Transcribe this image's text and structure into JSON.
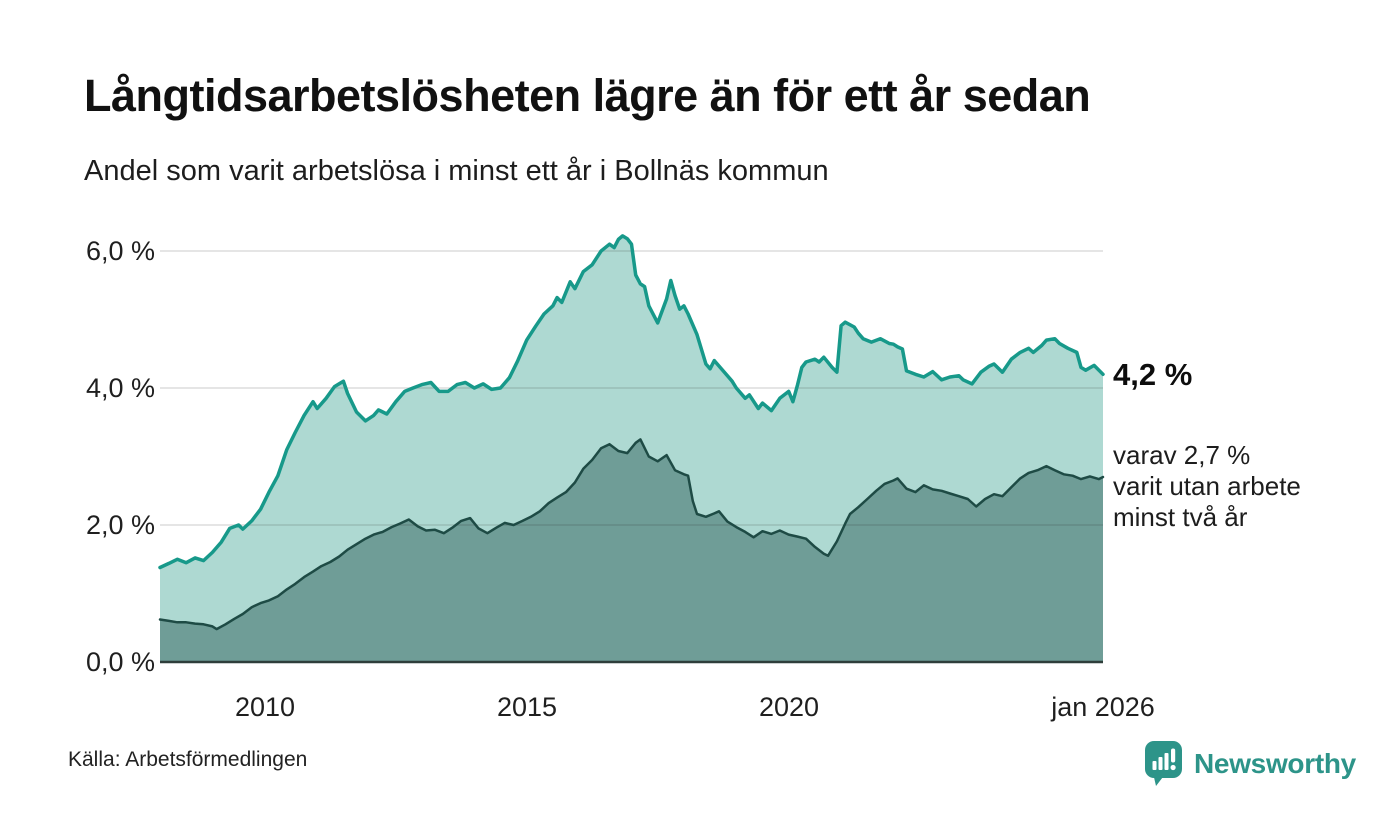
{
  "header": {
    "title": "Långtidsarbetslösheten lägre än för ett år sedan",
    "subtitle": "Andel som varit arbetslösa i minst ett år i Bollnäs kommun"
  },
  "chart_data": {
    "type": "area",
    "title": "Långtidsarbetslösheten lägre än för ett år sedan",
    "subtitle": "Andel som varit arbetslösa i minst ett år i Bollnäs kommun",
    "unit": "%",
    "grid": "horizontal",
    "x_axis": {
      "min": 2008,
      "max": 2026,
      "ticks": [
        {
          "value": 2010,
          "label": "2010"
        },
        {
          "value": 2015,
          "label": "2015"
        },
        {
          "value": 2020,
          "label": "2020"
        },
        {
          "value": 2026,
          "label": "jan 2026"
        }
      ]
    },
    "y_axis": {
      "min": 0,
      "max": 6.5,
      "ticks": [
        {
          "value": 6,
          "label": "6,0 %"
        },
        {
          "value": 4,
          "label": "4,0 %"
        },
        {
          "value": 2,
          "label": "2,0 %"
        },
        {
          "value": 0,
          "label": "0,0 %"
        }
      ]
    },
    "series": [
      {
        "name": "Andel arbetslösa minst ett år",
        "fill": "#aed9d2",
        "stroke": "#17998a",
        "stroke_width": 3.5,
        "latest_value": 4.2,
        "points": [
          [
            2008.0,
            1.38
          ],
          [
            2008.17,
            1.44
          ],
          [
            2008.33,
            1.5
          ],
          [
            2008.5,
            1.45
          ],
          [
            2008.67,
            1.52
          ],
          [
            2008.83,
            1.48
          ],
          [
            2009.0,
            1.6
          ],
          [
            2009.17,
            1.75
          ],
          [
            2009.33,
            1.95
          ],
          [
            2009.5,
            2.0
          ],
          [
            2009.58,
            1.94
          ],
          [
            2009.75,
            2.06
          ],
          [
            2009.92,
            2.23
          ],
          [
            2010.08,
            2.48
          ],
          [
            2010.25,
            2.72
          ],
          [
            2010.42,
            3.1
          ],
          [
            2010.58,
            3.35
          ],
          [
            2010.75,
            3.6
          ],
          [
            2010.92,
            3.8
          ],
          [
            2011.0,
            3.7
          ],
          [
            2011.17,
            3.85
          ],
          [
            2011.33,
            4.02
          ],
          [
            2011.5,
            4.1
          ],
          [
            2011.58,
            3.92
          ],
          [
            2011.75,
            3.65
          ],
          [
            2011.92,
            3.52
          ],
          [
            2012.08,
            3.6
          ],
          [
            2012.17,
            3.68
          ],
          [
            2012.33,
            3.62
          ],
          [
            2012.5,
            3.8
          ],
          [
            2012.67,
            3.95
          ],
          [
            2012.83,
            4.0
          ],
          [
            2013.0,
            4.05
          ],
          [
            2013.17,
            4.08
          ],
          [
            2013.33,
            3.95
          ],
          [
            2013.5,
            3.95
          ],
          [
            2013.67,
            4.05
          ],
          [
            2013.83,
            4.08
          ],
          [
            2014.0,
            4.0
          ],
          [
            2014.17,
            4.06
          ],
          [
            2014.33,
            3.98
          ],
          [
            2014.5,
            4.0
          ],
          [
            2014.67,
            4.15
          ],
          [
            2014.83,
            4.4
          ],
          [
            2015.0,
            4.7
          ],
          [
            2015.17,
            4.9
          ],
          [
            2015.33,
            5.08
          ],
          [
            2015.5,
            5.2
          ],
          [
            2015.58,
            5.32
          ],
          [
            2015.67,
            5.25
          ],
          [
            2015.83,
            5.55
          ],
          [
            2015.92,
            5.45
          ],
          [
            2016.08,
            5.7
          ],
          [
            2016.25,
            5.8
          ],
          [
            2016.42,
            6.0
          ],
          [
            2016.58,
            6.1
          ],
          [
            2016.67,
            6.05
          ],
          [
            2016.75,
            6.17
          ],
          [
            2016.83,
            6.22
          ],
          [
            2016.92,
            6.18
          ],
          [
            2017.0,
            6.1
          ],
          [
            2017.08,
            5.65
          ],
          [
            2017.17,
            5.52
          ],
          [
            2017.25,
            5.48
          ],
          [
            2017.33,
            5.2
          ],
          [
            2017.5,
            4.95
          ],
          [
            2017.67,
            5.3
          ],
          [
            2017.75,
            5.57
          ],
          [
            2017.83,
            5.35
          ],
          [
            2017.92,
            5.15
          ],
          [
            2018.0,
            5.2
          ],
          [
            2018.08,
            5.08
          ],
          [
            2018.25,
            4.78
          ],
          [
            2018.42,
            4.35
          ],
          [
            2018.5,
            4.28
          ],
          [
            2018.58,
            4.4
          ],
          [
            2018.75,
            4.25
          ],
          [
            2018.92,
            4.1
          ],
          [
            2019.0,
            4.0
          ],
          [
            2019.17,
            3.85
          ],
          [
            2019.25,
            3.9
          ],
          [
            2019.42,
            3.7
          ],
          [
            2019.5,
            3.78
          ],
          [
            2019.67,
            3.67
          ],
          [
            2019.83,
            3.85
          ],
          [
            2020.0,
            3.95
          ],
          [
            2020.08,
            3.8
          ],
          [
            2020.17,
            4.05
          ],
          [
            2020.25,
            4.3
          ],
          [
            2020.33,
            4.38
          ],
          [
            2020.5,
            4.42
          ],
          [
            2020.58,
            4.38
          ],
          [
            2020.67,
            4.45
          ],
          [
            2020.83,
            4.3
          ],
          [
            2020.92,
            4.23
          ],
          [
            2021.0,
            4.91
          ],
          [
            2021.08,
            4.96
          ],
          [
            2021.25,
            4.89
          ],
          [
            2021.33,
            4.8
          ],
          [
            2021.42,
            4.72
          ],
          [
            2021.58,
            4.67
          ],
          [
            2021.75,
            4.72
          ],
          [
            2021.92,
            4.65
          ],
          [
            2022.0,
            4.64
          ],
          [
            2022.08,
            4.6
          ],
          [
            2022.17,
            4.57
          ],
          [
            2022.25,
            4.25
          ],
          [
            2022.42,
            4.2
          ],
          [
            2022.58,
            4.16
          ],
          [
            2022.75,
            4.24
          ],
          [
            2022.92,
            4.12
          ],
          [
            2023.08,
            4.16
          ],
          [
            2023.25,
            4.18
          ],
          [
            2023.33,
            4.12
          ],
          [
            2023.5,
            4.06
          ],
          [
            2023.67,
            4.23
          ],
          [
            2023.83,
            4.32
          ],
          [
            2023.92,
            4.35
          ],
          [
            2024.08,
            4.23
          ],
          [
            2024.25,
            4.42
          ],
          [
            2024.42,
            4.52
          ],
          [
            2024.58,
            4.58
          ],
          [
            2024.67,
            4.52
          ],
          [
            2024.83,
            4.62
          ],
          [
            2024.92,
            4.7
          ],
          [
            2025.08,
            4.72
          ],
          [
            2025.17,
            4.65
          ],
          [
            2025.33,
            4.58
          ],
          [
            2025.5,
            4.52
          ],
          [
            2025.58,
            4.3
          ],
          [
            2025.67,
            4.26
          ],
          [
            2025.83,
            4.33
          ],
          [
            2026.0,
            4.2
          ]
        ]
      },
      {
        "name": "Andel utan arbete minst två år",
        "fill": "#6f9d97",
        "stroke": "#1e4b45",
        "stroke_width": 2.5,
        "latest_value": 2.7,
        "points": [
          [
            2008.0,
            0.62
          ],
          [
            2008.17,
            0.6
          ],
          [
            2008.33,
            0.58
          ],
          [
            2008.5,
            0.58
          ],
          [
            2008.67,
            0.56
          ],
          [
            2008.83,
            0.55
          ],
          [
            2009.0,
            0.52
          ],
          [
            2009.08,
            0.48
          ],
          [
            2009.25,
            0.55
          ],
          [
            2009.42,
            0.63
          ],
          [
            2009.58,
            0.7
          ],
          [
            2009.75,
            0.8
          ],
          [
            2009.92,
            0.86
          ],
          [
            2010.08,
            0.9
          ],
          [
            2010.25,
            0.96
          ],
          [
            2010.42,
            1.06
          ],
          [
            2010.58,
            1.14
          ],
          [
            2010.75,
            1.24
          ],
          [
            2010.92,
            1.32
          ],
          [
            2011.08,
            1.4
          ],
          [
            2011.25,
            1.46
          ],
          [
            2011.42,
            1.54
          ],
          [
            2011.58,
            1.64
          ],
          [
            2011.75,
            1.72
          ],
          [
            2011.92,
            1.8
          ],
          [
            2012.08,
            1.86
          ],
          [
            2012.25,
            1.9
          ],
          [
            2012.42,
            1.97
          ],
          [
            2012.58,
            2.02
          ],
          [
            2012.75,
            2.08
          ],
          [
            2012.92,
            1.98
          ],
          [
            2013.08,
            1.92
          ],
          [
            2013.25,
            1.93
          ],
          [
            2013.42,
            1.88
          ],
          [
            2013.58,
            1.96
          ],
          [
            2013.75,
            2.06
          ],
          [
            2013.92,
            2.1
          ],
          [
            2014.08,
            1.95
          ],
          [
            2014.25,
            1.88
          ],
          [
            2014.42,
            1.96
          ],
          [
            2014.58,
            2.03
          ],
          [
            2014.75,
            2.0
          ],
          [
            2014.92,
            2.06
          ],
          [
            2015.08,
            2.12
          ],
          [
            2015.25,
            2.2
          ],
          [
            2015.42,
            2.32
          ],
          [
            2015.58,
            2.4
          ],
          [
            2015.75,
            2.48
          ],
          [
            2015.92,
            2.62
          ],
          [
            2016.08,
            2.82
          ],
          [
            2016.25,
            2.95
          ],
          [
            2016.42,
            3.12
          ],
          [
            2016.58,
            3.18
          ],
          [
            2016.75,
            3.08
          ],
          [
            2016.92,
            3.05
          ],
          [
            2017.08,
            3.2
          ],
          [
            2017.17,
            3.25
          ],
          [
            2017.33,
            3.0
          ],
          [
            2017.5,
            2.93
          ],
          [
            2017.67,
            3.02
          ],
          [
            2017.83,
            2.8
          ],
          [
            2018.0,
            2.74
          ],
          [
            2018.08,
            2.72
          ],
          [
            2018.17,
            2.35
          ],
          [
            2018.25,
            2.16
          ],
          [
            2018.42,
            2.12
          ],
          [
            2018.58,
            2.17
          ],
          [
            2018.67,
            2.2
          ],
          [
            2018.83,
            2.05
          ],
          [
            2019.0,
            1.97
          ],
          [
            2019.17,
            1.9
          ],
          [
            2019.33,
            1.82
          ],
          [
            2019.5,
            1.91
          ],
          [
            2019.67,
            1.87
          ],
          [
            2019.83,
            1.92
          ],
          [
            2020.0,
            1.86
          ],
          [
            2020.17,
            1.83
          ],
          [
            2020.33,
            1.8
          ],
          [
            2020.5,
            1.68
          ],
          [
            2020.67,
            1.58
          ],
          [
            2020.75,
            1.55
          ],
          [
            2020.92,
            1.76
          ],
          [
            2021.08,
            2.02
          ],
          [
            2021.17,
            2.16
          ],
          [
            2021.33,
            2.26
          ],
          [
            2021.5,
            2.38
          ],
          [
            2021.67,
            2.5
          ],
          [
            2021.83,
            2.6
          ],
          [
            2022.0,
            2.65
          ],
          [
            2022.08,
            2.68
          ],
          [
            2022.25,
            2.53
          ],
          [
            2022.42,
            2.48
          ],
          [
            2022.58,
            2.58
          ],
          [
            2022.75,
            2.52
          ],
          [
            2022.92,
            2.5
          ],
          [
            2023.08,
            2.46
          ],
          [
            2023.25,
            2.42
          ],
          [
            2023.42,
            2.38
          ],
          [
            2023.58,
            2.27
          ],
          [
            2023.75,
            2.38
          ],
          [
            2023.92,
            2.45
          ],
          [
            2024.08,
            2.42
          ],
          [
            2024.25,
            2.55
          ],
          [
            2024.42,
            2.68
          ],
          [
            2024.58,
            2.76
          ],
          [
            2024.75,
            2.8
          ],
          [
            2024.92,
            2.86
          ],
          [
            2025.08,
            2.8
          ],
          [
            2025.25,
            2.74
          ],
          [
            2025.42,
            2.72
          ],
          [
            2025.58,
            2.67
          ],
          [
            2025.75,
            2.71
          ],
          [
            2025.92,
            2.67
          ],
          [
            2026.0,
            2.7
          ]
        ]
      }
    ],
    "annotations": {
      "latest_total": "4,2 %",
      "latest_two_years": "varav 2,7 %\nvarit utan arbete\nminst två år"
    },
    "legend_position": "right-annotations",
    "colors": {
      "gridline": "#d9d9d9",
      "baseline": "#2e3e3a",
      "fill_one_year": "#aed9d2",
      "stroke_one_year": "#17998a",
      "fill_two_year": "#6f9d97",
      "stroke_two_year": "#1e4b45"
    }
  },
  "footer": {
    "source": "Källa: Arbetsförmedlingen",
    "brand": "Newsworthy",
    "brand_color": "#2d9489"
  }
}
